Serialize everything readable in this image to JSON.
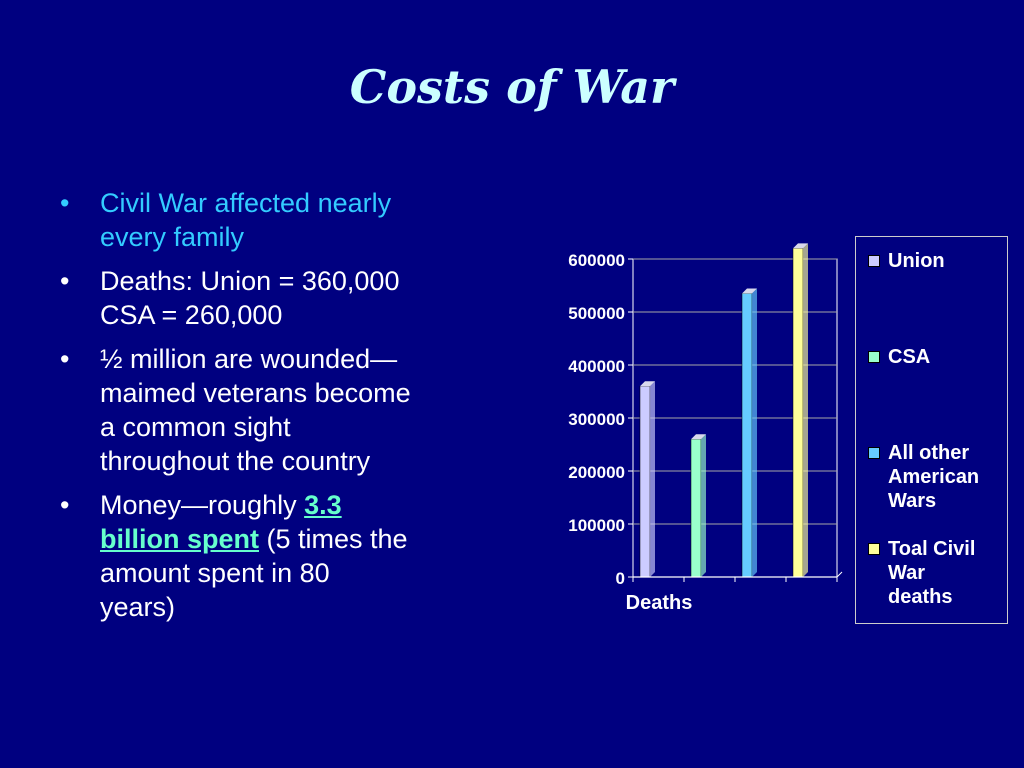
{
  "slide": {
    "title": "Costs of War"
  },
  "bullets": [
    {
      "lines": [
        "Civil War affected nearly",
        "every family"
      ]
    },
    {
      "lines": [
        "Deaths: Union = 360,000",
        "CSA = 260,000"
      ]
    },
    {
      "lines": [
        "½ million are wounded—",
        "maimed veterans become",
        "a common sight",
        "throughout the country"
      ]
    },
    {
      "prefix": "Money—roughly ",
      "highlight_1": "3.3",
      "highlight_2": "billion spent",
      "after_highlight": " (5 times the",
      "lines": [
        "amount spent in 80",
        "years)"
      ]
    }
  ],
  "bullet_symbol": "•",
  "colors": {
    "background": "#000080",
    "title": "#CCFFFF",
    "first_bullet": "#33CCFF",
    "text": "#FFFFFF",
    "highlight": "#66FFCC"
  },
  "chart_data": {
    "type": "bar",
    "categories": [
      "Deaths"
    ],
    "series": [
      {
        "name": "Union",
        "values": [
          360000
        ],
        "color": "#CCCCFF"
      },
      {
        "name": "CSA",
        "values": [
          260000
        ],
        "color": "#99FFCC"
      },
      {
        "name": "All other American Wars",
        "values": [
          535000
        ],
        "color": "#66CCFF"
      },
      {
        "name": "Toal Civil War deaths",
        "values": [
          620000
        ],
        "color": "#FFFF99"
      }
    ],
    "yticks": [
      "0",
      "100000",
      "200000",
      "300000",
      "400000",
      "500000",
      "600000"
    ],
    "ylim": [
      0,
      600000
    ],
    "legend": {
      "position": "right",
      "items": [
        {
          "lines": [
            "Union"
          ]
        },
        {
          "lines": [
            "CSA"
          ]
        },
        {
          "lines": [
            "All other",
            "American",
            "Wars"
          ]
        },
        {
          "lines": [
            "Toal Civil",
            "War",
            "deaths"
          ]
        }
      ]
    },
    "grid": true
  }
}
